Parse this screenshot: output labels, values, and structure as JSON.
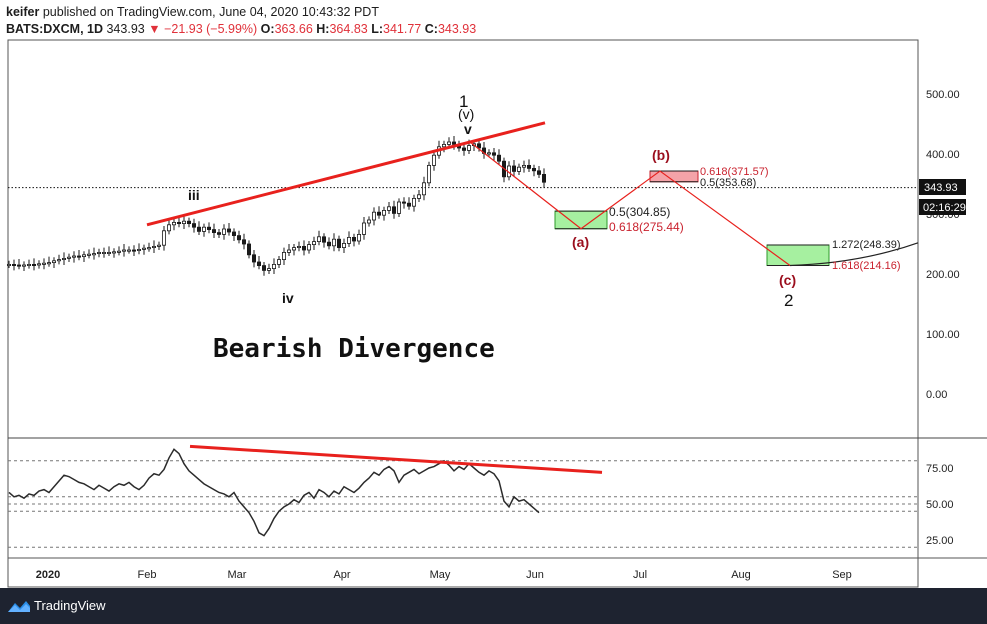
{
  "header": {
    "publisher": "keifer",
    "published_text": "published on TradingView.com, June 04, 2020 10:43:32 PDT",
    "symbol": "BATS:DXCM, 1D",
    "last": "343.93",
    "change": "−21.93 (−5.99%)",
    "open_label": "O:",
    "open": "363.66",
    "high_label": "H:",
    "high": "364.83",
    "low_label": "L:",
    "low": "341.77",
    "close_label": "C:",
    "close": "343.93"
  },
  "footer": {
    "brand": "TradingView"
  },
  "colors": {
    "trend": "#e8211d",
    "wave": "#e8211d",
    "green_box": "#a6f0a0",
    "red_box": "#f4a3a8",
    "candle": "#1a1a1a"
  },
  "chart_data": [
    {
      "type": "candlestick",
      "title": "Bearish Divergence",
      "x_ticks": [
        "2020",
        "Feb",
        "Mar",
        "Apr",
        "May",
        "Jun",
        "Jul",
        "Aug",
        "Sep"
      ],
      "y_ticks": [
        "500.00",
        "400.00",
        "300.00",
        "200.00",
        "100.00",
        "0.00"
      ],
      "ylim": [
        -60,
        580
      ],
      "last_price_label": "343.93",
      "countdown_label": "02:16:29",
      "close_series": [
        216,
        215,
        214,
        215,
        216,
        215,
        217,
        218,
        219,
        222,
        224,
        226,
        228,
        230,
        229,
        232,
        233,
        234,
        236,
        236,
        236,
        237,
        238,
        240,
        240,
        239,
        241,
        243,
        244,
        246,
        248,
        272,
        282,
        286,
        284,
        288,
        284,
        278,
        271,
        278,
        274,
        269,
        266,
        275,
        270,
        264,
        257,
        250,
        232,
        220,
        214,
        206,
        209,
        216,
        224,
        236,
        240,
        244,
        246,
        240,
        249,
        254,
        262,
        253,
        247,
        258,
        244,
        251,
        261,
        255,
        266,
        285,
        290,
        303,
        298,
        306,
        312,
        301,
        320,
        318,
        313,
        326,
        332,
        352,
        381,
        398,
        412,
        416,
        420,
        416,
        410,
        406,
        414,
        417,
        410,
        401,
        402,
        398,
        388,
        362,
        380,
        371,
        378,
        381,
        376,
        372,
        366,
        353
      ],
      "projection": [
        {
          "label": "(v)",
          "date_index": 89,
          "price": 420
        },
        {
          "label": "(a)",
          "date_index": 125,
          "price": 275.44
        },
        {
          "label": "(b)",
          "date_index": 150,
          "price": 371.57
        },
        {
          "label": "(c)",
          "date_index": 180,
          "price": 214.16
        }
      ],
      "fib_zones": [
        {
          "upper": "0.5(304.85)",
          "lower": "0.618(275.44)",
          "top": 304.85,
          "bottom": 275.44,
          "color": "green"
        },
        {
          "upper": "0.618(371.57)",
          "lower": "0.5(353.68)",
          "top": 371.57,
          "bottom": 353.68,
          "color": "red"
        },
        {
          "upper": "1.272(248.39)",
          "lower": "1.618(214.16)",
          "top": 248.39,
          "bottom": 214.16,
          "color": "green"
        }
      ],
      "wave_labels": {
        "iii": "iii",
        "iv": "iv",
        "v": "v",
        "one": "1",
        "v_paren": "(v)",
        "a": "(a)",
        "b": "(b)",
        "c": "(c)",
        "two": "2"
      },
      "trendline": {
        "from_price": 282,
        "to_price": 452
      }
    },
    {
      "type": "line",
      "title": "",
      "y_ticks": [
        "75.00",
        "50.00",
        "25.00"
      ],
      "ylim": [
        15,
        95
      ],
      "hlines": [
        80,
        55,
        50,
        45,
        20
      ],
      "values": [
        58,
        55,
        56,
        54,
        57,
        56,
        59,
        60,
        58,
        62,
        66,
        70,
        69,
        67,
        65,
        64,
        62,
        60,
        63,
        61,
        59,
        62,
        64,
        63,
        65,
        62,
        60,
        63,
        68,
        71,
        70,
        74,
        82,
        88,
        85,
        78,
        73,
        70,
        67,
        64,
        62,
        60,
        58,
        57,
        55,
        58,
        52,
        48,
        44,
        38,
        30,
        28,
        33,
        40,
        45,
        48,
        50,
        53,
        51,
        56,
        58,
        54,
        60,
        58,
        55,
        59,
        57,
        62,
        60,
        58,
        61,
        65,
        68,
        72,
        70,
        74,
        76,
        73,
        65,
        70,
        72,
        74,
        71,
        73,
        75,
        76,
        78,
        80,
        77,
        73,
        76,
        74,
        78,
        75,
        72,
        70,
        73,
        71,
        66,
        52,
        48,
        55,
        52,
        53,
        50,
        47,
        44
      ],
      "divergence_line": {
        "from_value": 90,
        "to_value": 72
      }
    }
  ]
}
